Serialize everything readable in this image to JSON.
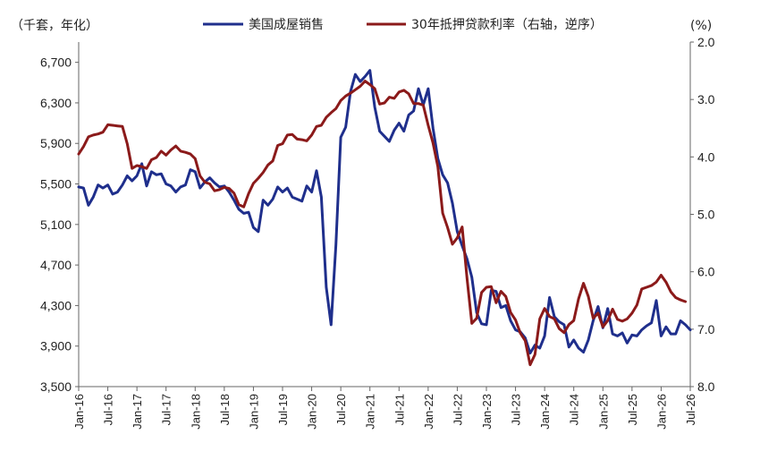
{
  "chart_data": {
    "type": "line",
    "left_axis_label": "（千套，年化）",
    "right_axis_label": "(%)",
    "left_ylim": [
      3500,
      6900
    ],
    "left_ticks": [
      "3,500",
      "3,900",
      "4,300",
      "4,700",
      "5,100",
      "5,500",
      "5,900",
      "6,300",
      "6,700"
    ],
    "right_ylim": [
      8.0,
      2.0
    ],
    "right_inverted": true,
    "right_ticks": [
      "2.0",
      "3.0",
      "4.0",
      "5.0",
      "6.0",
      "7.0",
      "8.0"
    ],
    "x_start": "2016-01",
    "x_end": "2026-07",
    "x_ticks": [
      "Jan-16",
      "Jul-16",
      "Jan-17",
      "Jul-17",
      "Jan-18",
      "Jul-18",
      "Jan-19",
      "Jul-19",
      "Jan-20",
      "Jul-20",
      "Jan-21",
      "Jul-21",
      "Jan-22",
      "Jul-22",
      "Jan-23",
      "Jul-23",
      "Jan-24",
      "Jul-24",
      "Jan-25",
      "Jul-25",
      "Jan-26",
      "Jul-26"
    ],
    "series": [
      {
        "name": "美国成屋销售",
        "color": "#1f2f8c",
        "axis": "left",
        "points": [
          [
            "2016-01",
            5470
          ],
          [
            "2016-02",
            5460
          ],
          [
            "2016-03",
            5290
          ],
          [
            "2016-04",
            5370
          ],
          [
            "2016-05",
            5490
          ],
          [
            "2016-06",
            5460
          ],
          [
            "2016-07",
            5490
          ],
          [
            "2016-08",
            5400
          ],
          [
            "2016-09",
            5420
          ],
          [
            "2016-10",
            5490
          ],
          [
            "2016-11",
            5580
          ],
          [
            "2016-12",
            5530
          ],
          [
            "2017-01",
            5580
          ],
          [
            "2017-02",
            5700
          ],
          [
            "2017-03",
            5480
          ],
          [
            "2017-04",
            5620
          ],
          [
            "2017-05",
            5590
          ],
          [
            "2017-06",
            5600
          ],
          [
            "2017-07",
            5500
          ],
          [
            "2017-08",
            5480
          ],
          [
            "2017-09",
            5420
          ],
          [
            "2017-10",
            5470
          ],
          [
            "2017-11",
            5490
          ],
          [
            "2017-12",
            5640
          ],
          [
            "2018-01",
            5620
          ],
          [
            "2018-02",
            5460
          ],
          [
            "2018-03",
            5520
          ],
          [
            "2018-04",
            5560
          ],
          [
            "2018-05",
            5510
          ],
          [
            "2018-06",
            5470
          ],
          [
            "2018-07",
            5480
          ],
          [
            "2018-08",
            5420
          ],
          [
            "2018-09",
            5340
          ],
          [
            "2018-10",
            5250
          ],
          [
            "2018-11",
            5210
          ],
          [
            "2018-12",
            5220
          ],
          [
            "2019-01",
            5070
          ],
          [
            "2019-02",
            5030
          ],
          [
            "2019-03",
            5340
          ],
          [
            "2019-04",
            5290
          ],
          [
            "2019-05",
            5350
          ],
          [
            "2019-06",
            5470
          ],
          [
            "2019-07",
            5420
          ],
          [
            "2019-08",
            5460
          ],
          [
            "2019-09",
            5370
          ],
          [
            "2019-10",
            5350
          ],
          [
            "2019-11",
            5330
          ],
          [
            "2019-12",
            5480
          ],
          [
            "2020-01",
            5420
          ],
          [
            "2020-02",
            5630
          ],
          [
            "2020-03",
            5370
          ],
          [
            "2020-04",
            4480
          ],
          [
            "2020-05",
            4110
          ],
          [
            "2020-06",
            4900
          ],
          [
            "2020-07",
            5960
          ],
          [
            "2020-08",
            6060
          ],
          [
            "2020-09",
            6410
          ],
          [
            "2020-10",
            6580
          ],
          [
            "2020-11",
            6510
          ],
          [
            "2020-12",
            6560
          ],
          [
            "2021-01",
            6620
          ],
          [
            "2021-02",
            6260
          ],
          [
            "2021-03",
            6020
          ],
          [
            "2021-04",
            5970
          ],
          [
            "2021-05",
            5920
          ],
          [
            "2021-06",
            6030
          ],
          [
            "2021-07",
            6100
          ],
          [
            "2021-08",
            6020
          ],
          [
            "2021-09",
            6180
          ],
          [
            "2021-10",
            6220
          ],
          [
            "2021-11",
            6440
          ],
          [
            "2021-12",
            6280
          ],
          [
            "2022-01",
            6440
          ],
          [
            "2022-02",
            6050
          ],
          [
            "2022-03",
            5750
          ],
          [
            "2022-04",
            5590
          ],
          [
            "2022-05",
            5510
          ],
          [
            "2022-06",
            5310
          ],
          [
            "2022-07",
            5030
          ],
          [
            "2022-08",
            4890
          ],
          [
            "2022-09",
            4760
          ],
          [
            "2022-10",
            4580
          ],
          [
            "2022-11",
            4230
          ],
          [
            "2022-12",
            4120
          ],
          [
            "2023-01",
            4110
          ],
          [
            "2023-02",
            4450
          ],
          [
            "2023-03",
            4440
          ],
          [
            "2023-04",
            4280
          ],
          [
            "2023-05",
            4300
          ],
          [
            "2023-06",
            4150
          ],
          [
            "2023-07",
            4060
          ],
          [
            "2023-08",
            4040
          ],
          [
            "2023-09",
            3980
          ],
          [
            "2023-10",
            3830
          ],
          [
            "2023-11",
            3910
          ],
          [
            "2023-12",
            3880
          ],
          [
            "2024-01",
            4000
          ],
          [
            "2024-02",
            4380
          ],
          [
            "2024-03",
            4190
          ],
          [
            "2024-04",
            4140
          ],
          [
            "2024-05",
            4110
          ],
          [
            "2024-06",
            3890
          ],
          [
            "2024-07",
            3960
          ],
          [
            "2024-08",
            3880
          ],
          [
            "2024-09",
            3840
          ],
          [
            "2024-10",
            3960
          ],
          [
            "2024-11",
            4150
          ],
          [
            "2024-12",
            4290
          ],
          [
            "2025-01",
            4080
          ],
          [
            "2025-02",
            4270
          ],
          [
            "2025-03",
            4020
          ],
          [
            "2025-04",
            4000
          ],
          [
            "2025-05",
            4030
          ],
          [
            "2025-06",
            3930
          ],
          [
            "2025-07",
            4010
          ],
          [
            "2025-08",
            4000
          ],
          [
            "2025-09",
            4060
          ],
          [
            "2025-10",
            4100
          ],
          [
            "2025-11",
            4130
          ],
          [
            "2025-12",
            4350
          ],
          [
            "2026-01",
            4000
          ],
          [
            "2026-02",
            4090
          ],
          [
            "2026-03",
            4020
          ],
          [
            "2026-04",
            4020
          ],
          [
            "2026-05",
            4150
          ],
          [
            "2026-06",
            4110
          ],
          [
            "2026-07",
            4060
          ]
        ]
      },
      {
        "name": "30年抵押贷款利率（右轴，逆序）",
        "color": "#8b1a1a",
        "axis": "right",
        "points": [
          [
            "2016-01",
            3.95
          ],
          [
            "2016-02",
            3.82
          ],
          [
            "2016-03",
            3.65
          ],
          [
            "2016-04",
            3.62
          ],
          [
            "2016-05",
            3.6
          ],
          [
            "2016-06",
            3.57
          ],
          [
            "2016-07",
            3.44
          ],
          [
            "2016-08",
            3.45
          ],
          [
            "2016-09",
            3.46
          ],
          [
            "2016-10",
            3.47
          ],
          [
            "2016-11",
            3.77
          ],
          [
            "2016-12",
            4.2
          ],
          [
            "2017-01",
            4.15
          ],
          [
            "2017-02",
            4.17
          ],
          [
            "2017-03",
            4.2
          ],
          [
            "2017-04",
            4.05
          ],
          [
            "2017-05",
            4.01
          ],
          [
            "2017-06",
            3.9
          ],
          [
            "2017-07",
            3.97
          ],
          [
            "2017-08",
            3.88
          ],
          [
            "2017-09",
            3.81
          ],
          [
            "2017-10",
            3.9
          ],
          [
            "2017-11",
            3.92
          ],
          [
            "2017-12",
            3.95
          ],
          [
            "2018-01",
            4.03
          ],
          [
            "2018-02",
            4.33
          ],
          [
            "2018-03",
            4.44
          ],
          [
            "2018-04",
            4.47
          ],
          [
            "2018-05",
            4.59
          ],
          [
            "2018-06",
            4.57
          ],
          [
            "2018-07",
            4.53
          ],
          [
            "2018-08",
            4.55
          ],
          [
            "2018-09",
            4.63
          ],
          [
            "2018-10",
            4.83
          ],
          [
            "2018-11",
            4.87
          ],
          [
            "2018-12",
            4.64
          ],
          [
            "2019-01",
            4.46
          ],
          [
            "2019-02",
            4.37
          ],
          [
            "2019-03",
            4.27
          ],
          [
            "2019-04",
            4.14
          ],
          [
            "2019-05",
            4.07
          ],
          [
            "2019-06",
            3.8
          ],
          [
            "2019-07",
            3.77
          ],
          [
            "2019-08",
            3.62
          ],
          [
            "2019-09",
            3.61
          ],
          [
            "2019-10",
            3.69
          ],
          [
            "2019-11",
            3.7
          ],
          [
            "2019-12",
            3.72
          ],
          [
            "2020-01",
            3.62
          ],
          [
            "2020-02",
            3.47
          ],
          [
            "2020-03",
            3.45
          ],
          [
            "2020-04",
            3.31
          ],
          [
            "2020-05",
            3.23
          ],
          [
            "2020-06",
            3.16
          ],
          [
            "2020-07",
            3.02
          ],
          [
            "2020-08",
            2.94
          ],
          [
            "2020-09",
            2.89
          ],
          [
            "2020-10",
            2.83
          ],
          [
            "2020-11",
            2.77
          ],
          [
            "2020-12",
            2.68
          ],
          [
            "2021-01",
            2.74
          ],
          [
            "2021-02",
            2.81
          ],
          [
            "2021-03",
            3.08
          ],
          [
            "2021-04",
            3.06
          ],
          [
            "2021-05",
            2.96
          ],
          [
            "2021-06",
            2.98
          ],
          [
            "2021-07",
            2.87
          ],
          [
            "2021-08",
            2.84
          ],
          [
            "2021-09",
            2.9
          ],
          [
            "2021-10",
            3.07
          ],
          [
            "2021-11",
            3.07
          ],
          [
            "2021-12",
            3.1
          ],
          [
            "2022-01",
            3.45
          ],
          [
            "2022-02",
            3.76
          ],
          [
            "2022-03",
            4.17
          ],
          [
            "2022-04",
            4.98
          ],
          [
            "2022-05",
            5.23
          ],
          [
            "2022-06",
            5.52
          ],
          [
            "2022-07",
            5.41
          ],
          [
            "2022-08",
            5.22
          ],
          [
            "2022-09",
            6.11
          ],
          [
            "2022-10",
            6.9
          ],
          [
            "2022-11",
            6.81
          ],
          [
            "2022-12",
            6.36
          ],
          [
            "2023-01",
            6.27
          ],
          [
            "2023-02",
            6.26
          ],
          [
            "2023-03",
            6.54
          ],
          [
            "2023-04",
            6.34
          ],
          [
            "2023-05",
            6.43
          ],
          [
            "2023-06",
            6.71
          ],
          [
            "2023-07",
            6.84
          ],
          [
            "2023-08",
            7.07
          ],
          [
            "2023-09",
            7.2
          ],
          [
            "2023-10",
            7.62
          ],
          [
            "2023-11",
            7.44
          ],
          [
            "2023-12",
            6.82
          ],
          [
            "2024-01",
            6.64
          ],
          [
            "2024-02",
            6.78
          ],
          [
            "2024-03",
            6.82
          ],
          [
            "2024-04",
            6.99
          ],
          [
            "2024-05",
            7.06
          ],
          [
            "2024-06",
            6.92
          ],
          [
            "2024-07",
            6.85
          ],
          [
            "2024-08",
            6.47
          ],
          [
            "2024-09",
            6.2
          ],
          [
            "2024-10",
            6.43
          ],
          [
            "2024-11",
            6.81
          ],
          [
            "2024-12",
            6.72
          ],
          [
            "2025-01",
            6.96
          ],
          [
            "2025-02",
            6.85
          ],
          [
            "2025-03",
            6.65
          ],
          [
            "2025-04",
            6.83
          ],
          [
            "2025-05",
            6.86
          ],
          [
            "2025-06",
            6.82
          ],
          [
            "2025-07",
            6.72
          ],
          [
            "2025-08",
            6.58
          ],
          [
            "2025-09",
            6.3
          ],
          [
            "2025-10",
            6.27
          ],
          [
            "2025-11",
            6.24
          ],
          [
            "2025-12",
            6.18
          ],
          [
            "2026-01",
            6.06
          ],
          [
            "2026-02",
            6.18
          ],
          [
            "2026-03",
            6.35
          ],
          [
            "2026-04",
            6.45
          ],
          [
            "2026-05",
            6.49
          ],
          [
            "2026-06",
            6.52
          ]
        ]
      }
    ]
  }
}
